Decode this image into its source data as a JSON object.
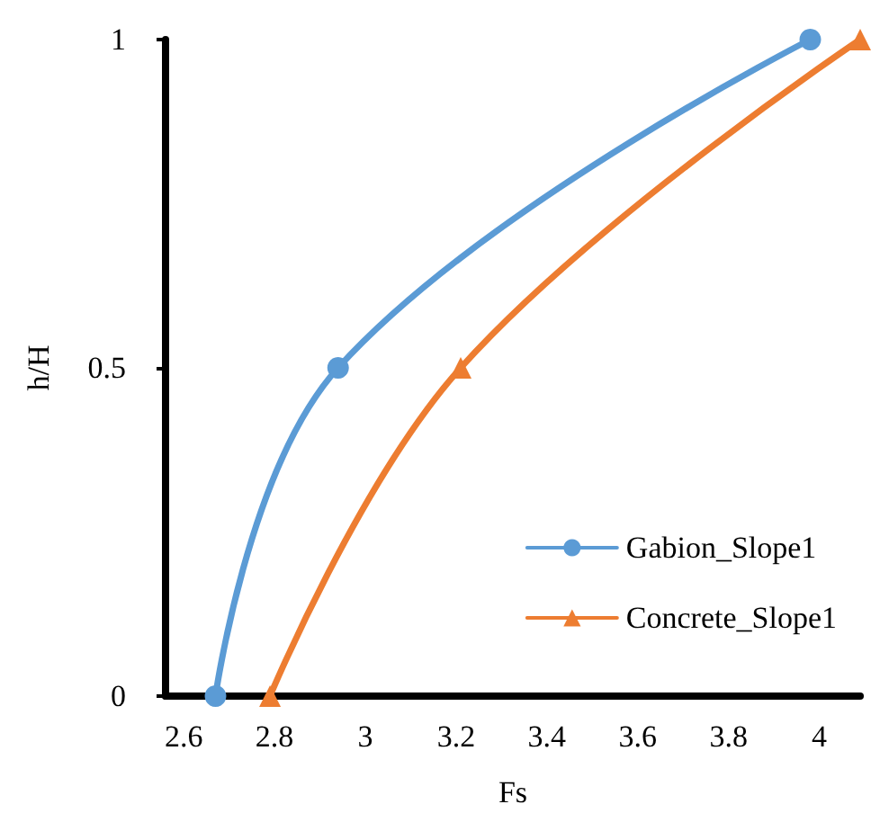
{
  "chart_data": {
    "type": "line",
    "xlabel": "Fs",
    "ylabel": "h/H",
    "xlim": [
      2.56,
      4.09
    ],
    "xticks": [
      2.6,
      2.8,
      3,
      3.2,
      3.4,
      3.6,
      3.8,
      4
    ],
    "ylim": [
      0,
      1
    ],
    "yticks": [
      0,
      0.5,
      1
    ],
    "grid": false,
    "legend": "bottom right",
    "series": [
      {
        "name": "Gabion_Slope1",
        "color": "#5b9bd5",
        "marker": "circle",
        "x": [
          2.67,
          2.94,
          3.98
        ],
        "values": [
          0,
          0.5,
          1
        ]
      },
      {
        "name": "Concrete_Slope1",
        "color": "#ed7d31",
        "marker": "triangle",
        "x": [
          2.79,
          3.21,
          4.09
        ],
        "values": [
          0,
          0.5,
          1
        ]
      }
    ]
  }
}
